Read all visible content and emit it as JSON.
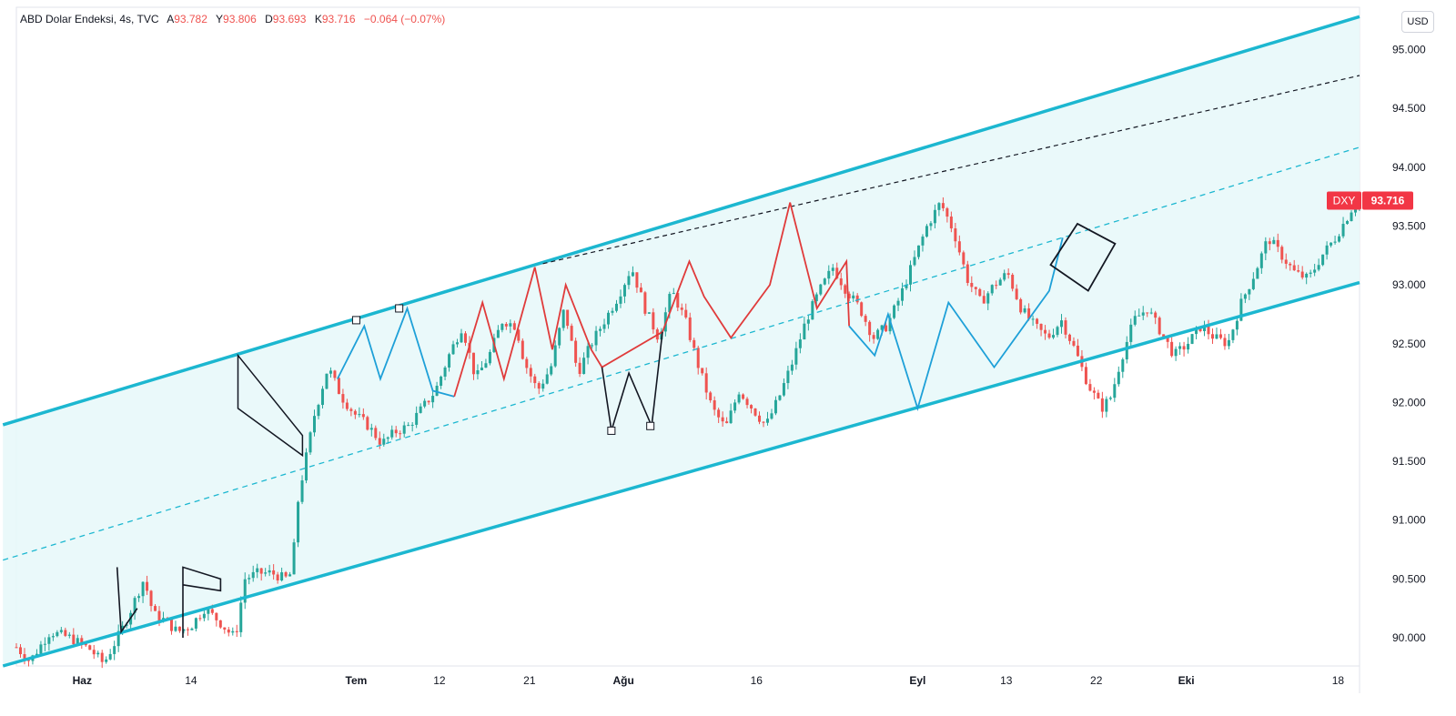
{
  "legend": {
    "symbol": "ABD Dolar Endeksi, 4s, TVC",
    "open_label": "A",
    "open": "93.782",
    "high_label": "Y",
    "high": "93.806",
    "low_label": "D",
    "low": "93.693",
    "close_label": "K",
    "close": "93.716",
    "change": "−0.064 (−0.07%)"
  },
  "currency": "USD",
  "price_tag": {
    "ticker": "DXY",
    "value": "93.716",
    "price": 93.716
  },
  "colors": {
    "up": "#26a69a",
    "down": "#ef5350",
    "channel": "#1cb7d0",
    "channel_fill": "#e8f8fa",
    "zigzag_red": "#e03b3b",
    "zigzag_blue": "#1ea0d8",
    "black": "#131722",
    "tag": "#f23645"
  },
  "chart_data": {
    "type": "candlestick",
    "title": "ABD Dolar Endeksi, 4s, TVC",
    "y_ticks": [
      90.0,
      90.5,
      91.0,
      91.5,
      92.0,
      92.5,
      93.0,
      93.5,
      94.0,
      94.5,
      95.0
    ],
    "y_tick_labels": [
      "90.000",
      "90.500",
      "91.000",
      "91.500",
      "92.000",
      "92.500",
      "93.000",
      "93.500",
      "94.000",
      "94.500",
      "95.000"
    ],
    "ylim": [
      89.76,
      95.36
    ],
    "x_ticks": [
      {
        "label": "Haz",
        "bold": true,
        "t": 0.049
      },
      {
        "label": "14",
        "bold": false,
        "t": 0.13
      },
      {
        "label": "Tem",
        "bold": true,
        "t": 0.253
      },
      {
        "label": "12",
        "bold": false,
        "t": 0.315
      },
      {
        "label": "21",
        "bold": false,
        "t": 0.382
      },
      {
        "label": "Ağu",
        "bold": true,
        "t": 0.452
      },
      {
        "label": "16",
        "bold": false,
        "t": 0.551
      },
      {
        "label": "Eyl",
        "bold": true,
        "t": 0.671
      },
      {
        "label": "13",
        "bold": false,
        "t": 0.737
      },
      {
        "label": "22",
        "bold": false,
        "t": 0.804
      },
      {
        "label": "Eki",
        "bold": true,
        "t": 0.871
      },
      {
        "label": "18",
        "bold": false,
        "t": 0.984
      }
    ],
    "price_path": [
      [
        0.0,
        89.92
      ],
      [
        0.01,
        89.8
      ],
      [
        0.025,
        90.05
      ],
      [
        0.04,
        90.0
      ],
      [
        0.055,
        89.9
      ],
      [
        0.065,
        89.78
      ],
      [
        0.08,
        90.1
      ],
      [
        0.095,
        90.5
      ],
      [
        0.102,
        90.2
      ],
      [
        0.11,
        90.15
      ],
      [
        0.12,
        90.05
      ],
      [
        0.13,
        90.1
      ],
      [
        0.14,
        90.25
      ],
      [
        0.15,
        90.15
      ],
      [
        0.158,
        90.05
      ],
      [
        0.163,
        90.0
      ],
      [
        0.17,
        90.5
      ],
      [
        0.18,
        90.55
      ],
      [
        0.19,
        90.55
      ],
      [
        0.2,
        90.5
      ],
      [
        0.205,
        90.55
      ],
      [
        0.21,
        91.2
      ],
      [
        0.222,
        91.9
      ],
      [
        0.232,
        92.3
      ],
      [
        0.242,
        92.05
      ],
      [
        0.252,
        91.9
      ],
      [
        0.262,
        91.8
      ],
      [
        0.272,
        91.65
      ],
      [
        0.282,
        91.75
      ],
      [
        0.292,
        91.8
      ],
      [
        0.302,
        91.95
      ],
      [
        0.312,
        92.1
      ],
      [
        0.322,
        92.4
      ],
      [
        0.332,
        92.65
      ],
      [
        0.342,
        92.2
      ],
      [
        0.352,
        92.4
      ],
      [
        0.362,
        92.7
      ],
      [
        0.372,
        92.65
      ],
      [
        0.378,
        92.35
      ],
      [
        0.388,
        92.1
      ],
      [
        0.398,
        92.3
      ],
      [
        0.408,
        92.8
      ],
      [
        0.418,
        92.25
      ],
      [
        0.428,
        92.5
      ],
      [
        0.438,
        92.7
      ],
      [
        0.448,
        92.9
      ],
      [
        0.458,
        93.15
      ],
      [
        0.468,
        92.8
      ],
      [
        0.478,
        92.55
      ],
      [
        0.488,
        92.95
      ],
      [
        0.498,
        92.7
      ],
      [
        0.508,
        92.3
      ],
      [
        0.518,
        91.95
      ],
      [
        0.528,
        91.78
      ],
      [
        0.538,
        92.1
      ],
      [
        0.548,
        91.95
      ],
      [
        0.558,
        91.8
      ],
      [
        0.568,
        92.05
      ],
      [
        0.578,
        92.35
      ],
      [
        0.588,
        92.7
      ],
      [
        0.598,
        92.95
      ],
      [
        0.608,
        93.15
      ],
      [
        0.618,
        92.95
      ],
      [
        0.628,
        92.8
      ],
      [
        0.638,
        92.55
      ],
      [
        0.648,
        92.65
      ],
      [
        0.658,
        92.9
      ],
      [
        0.668,
        93.2
      ],
      [
        0.678,
        93.5
      ],
      [
        0.688,
        93.7
      ],
      [
        0.698,
        93.45
      ],
      [
        0.708,
        93.05
      ],
      [
        0.718,
        92.85
      ],
      [
        0.728,
        93.0
      ],
      [
        0.738,
        93.1
      ],
      [
        0.748,
        92.8
      ],
      [
        0.758,
        92.65
      ],
      [
        0.768,
        92.55
      ],
      [
        0.778,
        92.7
      ],
      [
        0.788,
        92.45
      ],
      [
        0.798,
        92.15
      ],
      [
        0.808,
        91.95
      ],
      [
        0.815,
        92.05
      ],
      [
        0.822,
        92.35
      ],
      [
        0.832,
        92.7
      ],
      [
        0.842,
        92.8
      ],
      [
        0.852,
        92.6
      ],
      [
        0.862,
        92.4
      ],
      [
        0.872,
        92.5
      ],
      [
        0.882,
        92.65
      ],
      [
        0.892,
        92.55
      ],
      [
        0.902,
        92.5
      ],
      [
        0.912,
        92.85
      ],
      [
        0.922,
        93.1
      ],
      [
        0.932,
        93.4
      ],
      [
        0.942,
        93.25
      ],
      [
        0.952,
        93.1
      ],
      [
        0.962,
        93.05
      ],
      [
        0.972,
        93.25
      ],
      [
        0.982,
        93.4
      ],
      [
        0.992,
        93.6
      ],
      [
        1.0,
        93.78
      ]
    ],
    "channel": {
      "upper": [
        [
          -0.01,
          91.81
        ],
        [
          1.0,
          95.28
        ]
      ],
      "lower": [
        [
          -0.01,
          89.76
        ],
        [
          1.0,
          93.02
        ]
      ],
      "mid": [
        [
          -0.01,
          90.66
        ],
        [
          1.0,
          94.17
        ]
      ]
    },
    "trendline_dashed": [
      [
        0.392,
        93.18
      ],
      [
        1.0,
        94.78
      ]
    ],
    "zigzag_red": [
      [
        0.326,
        92.05
      ],
      [
        0.347,
        92.85
      ],
      [
        0.363,
        92.2
      ],
      [
        0.386,
        93.15
      ],
      [
        0.399,
        92.45
      ],
      [
        0.409,
        93.0
      ],
      [
        0.428,
        92.45
      ],
      [
        0.436,
        92.3
      ],
      [
        0.481,
        92.6
      ],
      [
        0.501,
        93.2
      ],
      [
        0.512,
        92.9
      ],
      [
        0.532,
        92.55
      ],
      [
        0.561,
        93.0
      ],
      [
        0.576,
        93.7
      ],
      [
        0.596,
        92.8
      ],
      [
        0.618,
        93.2
      ],
      [
        0.62,
        92.65
      ]
    ],
    "zigzag_blue": [
      [
        0.62,
        92.65
      ],
      [
        0.639,
        92.4
      ],
      [
        0.649,
        92.75
      ],
      [
        0.671,
        91.95
      ],
      [
        0.694,
        92.85
      ],
      [
        0.728,
        92.3
      ],
      [
        0.769,
        92.95
      ],
      [
        0.779,
        93.4
      ]
    ],
    "zigzag_blue_early": [
      [
        0.239,
        92.2
      ],
      [
        0.259,
        92.65
      ],
      [
        0.271,
        92.2
      ],
      [
        0.291,
        92.8
      ],
      [
        0.31,
        92.1
      ],
      [
        0.326,
        92.05
      ]
    ],
    "zigzag_black": [
      [
        0.436,
        92.3
      ],
      [
        0.443,
        91.76
      ],
      [
        0.456,
        92.25
      ],
      [
        0.473,
        91.8
      ],
      [
        0.481,
        92.6
      ]
    ],
    "patterns": {
      "flag_early": [
        [
          0.075,
          90.6
        ],
        [
          0.078,
          90.05
        ],
        [
          0.09,
          90.25
        ]
      ],
      "flag_channel": [
        [
          0.124,
          90.0
        ],
        [
          0.124,
          90.6
        ],
        [
          0.152,
          90.5
        ],
        [
          0.152,
          90.4
        ],
        [
          0.124,
          90.45
        ]
      ],
      "wedge": [
        [
          0.165,
          92.4
        ],
        [
          0.213,
          91.72
        ],
        [
          0.213,
          91.55
        ],
        [
          0.165,
          91.95
        ]
      ],
      "diamond": [
        [
          0.77,
          93.17
        ],
        [
          0.79,
          93.52
        ],
        [
          0.818,
          93.35
        ],
        [
          0.798,
          92.95
        ],
        [
          0.77,
          93.17
        ]
      ]
    },
    "markers": [
      [
        0.253,
        92.7
      ],
      [
        0.285,
        92.8
      ],
      [
        0.443,
        91.76
      ],
      [
        0.472,
        91.8
      ]
    ]
  }
}
